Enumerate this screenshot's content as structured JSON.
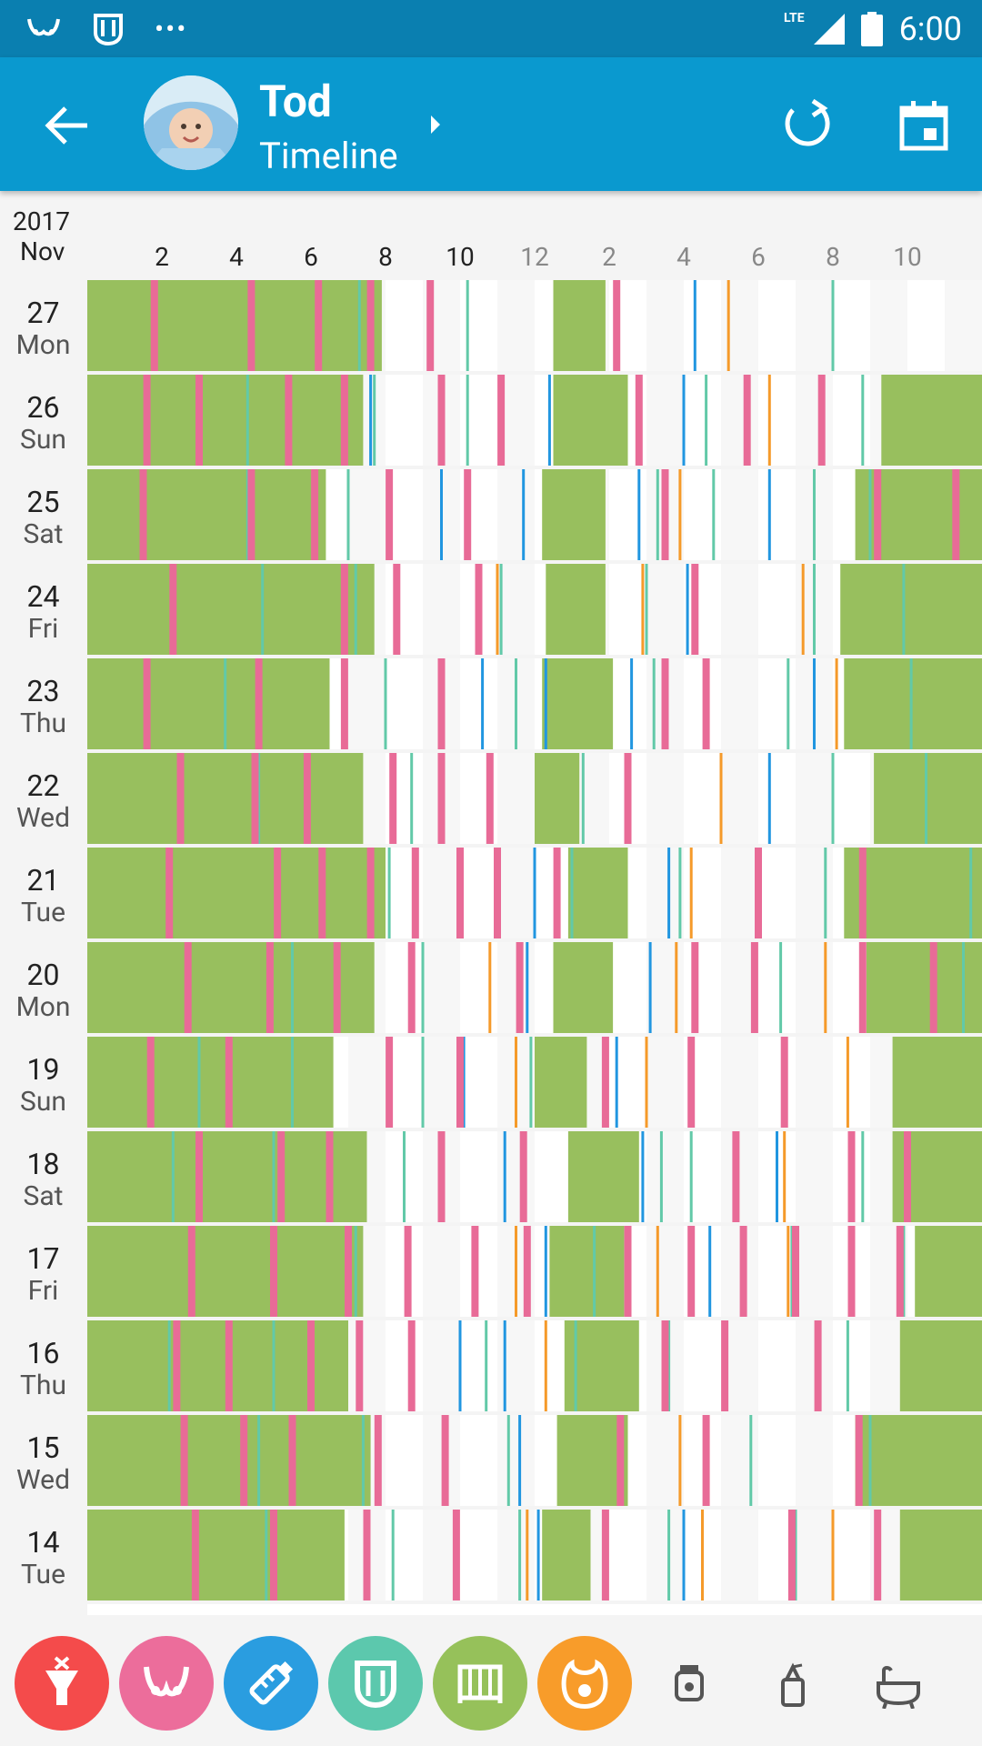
{
  "status": {
    "time": "6:00",
    "network": "LTE"
  },
  "appbar": {
    "name": "Tod",
    "subtitle": "Timeline"
  },
  "header": {
    "year": "2017",
    "month": "Nov",
    "hours": [
      "2",
      "4",
      "6",
      "8",
      "10",
      "12",
      "2",
      "4",
      "6",
      "8",
      "10"
    ]
  },
  "colors": {
    "sleep": "#98bf5e",
    "breast": "#e86b97",
    "bottle": "#2196e0",
    "diaper": "#62c9a8",
    "food": "#f59a2a",
    "grid_alt": "#f7f7f7",
    "grid": "#ffffff"
  },
  "days": [
    {
      "date": "27",
      "weekday": "Mon"
    },
    {
      "date": "26",
      "weekday": "Sun"
    },
    {
      "date": "25",
      "weekday": "Sat"
    },
    {
      "date": "24",
      "weekday": "Fri"
    },
    {
      "date": "23",
      "weekday": "Thu"
    },
    {
      "date": "22",
      "weekday": "Wed"
    },
    {
      "date": "21",
      "weekday": "Tue"
    },
    {
      "date": "20",
      "weekday": "Mon"
    },
    {
      "date": "19",
      "weekday": "Sun"
    },
    {
      "date": "18",
      "weekday": "Sat"
    },
    {
      "date": "17",
      "weekday": "Fri"
    },
    {
      "date": "16",
      "weekday": "Thu"
    },
    {
      "date": "15",
      "weekday": "Wed"
    },
    {
      "date": "14",
      "weekday": "Tue"
    }
  ],
  "chart_data": {
    "type": "timeline",
    "x_range_hours": [
      0,
      24
    ],
    "series": [
      {
        "day": "27",
        "sleep": [
          [
            0,
            7.9
          ],
          [
            12.5,
            13.9
          ]
        ],
        "breast": [
          1.8,
          4.4,
          6.2,
          7.6,
          9.2,
          14.2
        ],
        "bottle": [
          16.3
        ],
        "diaper": [
          4.4,
          7.3,
          10.2,
          20.0
        ],
        "food": [
          17.2
        ]
      },
      {
        "day": "26",
        "sleep": [
          [
            0,
            7.4
          ],
          [
            12.5,
            14.5
          ],
          [
            21.3,
            24
          ]
        ],
        "breast": [
          1.6,
          3.0,
          5.4,
          6.9,
          9.5,
          11.1,
          14.8,
          17.7,
          19.7
        ],
        "bottle": [
          7.6,
          12.4,
          16.0
        ],
        "diaper": [
          4.3,
          7.7,
          10.2,
          16.6,
          20.8
        ],
        "food": [
          18.3
        ]
      },
      {
        "day": "25",
        "sleep": [
          [
            0,
            6.4
          ],
          [
            12.2,
            13.9
          ],
          [
            20.6,
            24
          ]
        ],
        "breast": [
          1.5,
          4.4,
          6.1,
          8.1,
          10.2,
          15.5,
          21.2,
          23.3
        ],
        "bottle": [
          9.5,
          11.7,
          14.8,
          18.3
        ],
        "diaper": [
          4.3,
          7.0,
          15.3,
          16.8,
          19.5,
          21.0
        ],
        "food": [
          15.9
        ]
      },
      {
        "day": "24",
        "sleep": [
          [
            0,
            7.7
          ],
          [
            12.3,
            13.9
          ],
          [
            20.2,
            24
          ]
        ],
        "breast": [
          2.3,
          6.9,
          8.3,
          10.5,
          16.3
        ],
        "bottle": [
          16.1
        ],
        "diaper": [
          4.7,
          7.2,
          11.1,
          15.0,
          19.5,
          21.9
        ],
        "food": [
          11.0,
          14.9,
          19.2
        ]
      },
      {
        "day": "23",
        "sleep": [
          [
            0,
            6.5
          ],
          [
            12.2,
            14.1
          ],
          [
            20.3,
            24
          ]
        ],
        "breast": [
          1.6,
          4.6,
          6.9,
          9.5,
          15.5,
          16.6
        ],
        "bottle": [
          10.6,
          12.3,
          14.6,
          19.5
        ],
        "diaper": [
          3.7,
          8.0,
          11.5,
          15.2,
          18.8,
          22.1
        ],
        "food": [
          20.1
        ]
      },
      {
        "day": "22",
        "sleep": [
          [
            0,
            7.4
          ],
          [
            12.0,
            13.2
          ],
          [
            21.1,
            24
          ]
        ],
        "breast": [
          2.5,
          4.5,
          5.9,
          8.2,
          9.5,
          10.8,
          14.5
        ],
        "bottle": [
          18.3
        ],
        "diaper": [
          4.6,
          8.7,
          13.3,
          20.0,
          22.5
        ],
        "food": [
          17.0
        ]
      },
      {
        "day": "21",
        "sleep": [
          [
            0,
            8.0
          ],
          [
            12.9,
            14.5
          ],
          [
            20.3,
            24
          ]
        ],
        "breast": [
          2.2,
          5.1,
          6.3,
          7.6,
          8.8,
          10.0,
          11.0,
          12.6,
          18.0,
          20.8
        ],
        "bottle": [
          12.0,
          15.6
        ],
        "diaper": [
          8.1,
          13.0,
          15.9,
          19.8,
          23.7
        ],
        "food": [
          12.6,
          16.2
        ]
      },
      {
        "day": "20",
        "sleep": [
          [
            0,
            7.7
          ],
          [
            12.5,
            14.1
          ],
          [
            20.9,
            24
          ]
        ],
        "breast": [
          2.7,
          4.9,
          6.7,
          8.7,
          11.6,
          16.3,
          17.9,
          20.8,
          22.7
        ],
        "bottle": [
          11.8,
          15.1
        ],
        "diaper": [
          5.5,
          9.0,
          18.6,
          23.5
        ],
        "food": [
          10.8,
          15.8,
          19.8
        ]
      },
      {
        "day": "19",
        "sleep": [
          [
            0,
            6.6
          ],
          [
            12.0,
            13.4
          ],
          [
            21.6,
            24
          ]
        ],
        "breast": [
          1.7,
          3.8,
          8.1,
          10.0,
          13.9,
          16.2,
          18.7
        ],
        "bottle": [
          10.1,
          14.2
        ],
        "diaper": [
          3.0,
          5.5,
          9.0,
          11.9
        ],
        "food": [
          11.5,
          15.0,
          20.4
        ]
      },
      {
        "day": "18",
        "sleep": [
          [
            0,
            7.5
          ],
          [
            12.9,
            14.8
          ],
          [
            21.6,
            24
          ]
        ],
        "breast": [
          3.0,
          5.2,
          6.5,
          9.5,
          11.7,
          17.4,
          20.5,
          22.0
        ],
        "bottle": [
          11.2,
          14.9,
          18.5
        ],
        "diaper": [
          2.3,
          5.0,
          8.5,
          15.4,
          16.2,
          20.8
        ],
        "food": [
          18.7
        ]
      },
      {
        "day": "17",
        "sleep": [
          [
            0,
            7.4
          ],
          [
            12.4,
            14.4
          ],
          [
            22.2,
            24
          ]
        ],
        "breast": [
          2.8,
          5.0,
          7.0,
          8.6,
          10.4,
          11.8,
          14.5,
          16.2,
          17.6,
          19.0,
          20.5,
          21.8
        ],
        "bottle": [
          12.3,
          16.7
        ],
        "diaper": [
          7.2,
          13.6,
          18.9,
          21.9
        ],
        "food": [
          11.5,
          15.3,
          18.8
        ]
      },
      {
        "day": "16",
        "sleep": [
          [
            0,
            7.0
          ],
          [
            12.8,
            14.8
          ],
          [
            21.8,
            24
          ]
        ],
        "breast": [
          2.4,
          3.8,
          6.0,
          7.3,
          8.7,
          15.5,
          17.1,
          19.6
        ],
        "bottle": [
          10.0,
          11.2
        ],
        "diaper": [
          2.2,
          5.0,
          10.7,
          13.1,
          15.6,
          20.4
        ],
        "food": [
          12.3,
          17.1
        ]
      },
      {
        "day": "15",
        "sleep": [
          [
            0,
            7.6
          ],
          [
            12.6,
            14.5
          ],
          [
            20.6,
            24
          ]
        ],
        "breast": [
          2.6,
          4.2,
          5.5,
          7.8,
          9.6,
          14.3,
          16.6,
          20.7
        ],
        "bottle": [
          11.6
        ],
        "diaper": [
          4.6,
          7.4,
          11.3,
          17.8,
          21.0
        ],
        "food": [
          15.9
        ]
      },
      {
        "day": "14",
        "sleep": [
          [
            0,
            6.9
          ],
          [
            12.2,
            13.5
          ],
          [
            21.8,
            24
          ]
        ],
        "breast": [
          2.9,
          5.0,
          7.5,
          9.9,
          13.9,
          18.9,
          21.2
        ],
        "bottle": [
          12.1,
          16.0
        ],
        "diaper": [
          4.8,
          8.2,
          11.6,
          15.6,
          19.0
        ],
        "food": [
          11.8,
          16.5,
          20.0
        ]
      }
    ]
  }
}
